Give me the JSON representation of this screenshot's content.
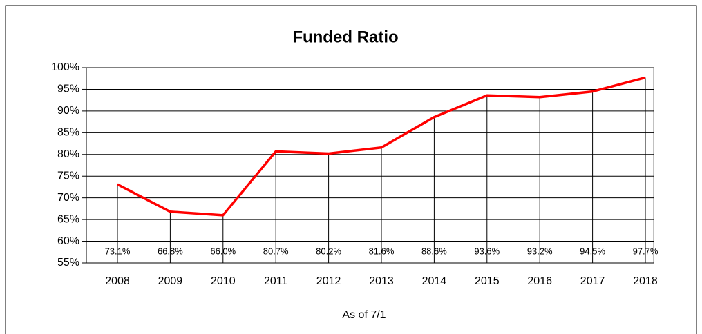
{
  "chart_data": {
    "type": "line",
    "title": "Funded Ratio",
    "x_label": "As of 7/1",
    "categories": [
      "2008",
      "2009",
      "2010",
      "2011",
      "2012",
      "2013",
      "2014",
      "2015",
      "2016",
      "2017",
      "2018"
    ],
    "values": [
      73.1,
      66.8,
      66.0,
      80.7,
      80.2,
      81.6,
      88.6,
      93.6,
      93.2,
      94.5,
      97.7
    ],
    "value_labels": [
      "73.1%",
      "66.8%",
      "66.0%",
      "80.7%",
      "80.2%",
      "81.6%",
      "88.6%",
      "93.6%",
      "93.2%",
      "94.5%",
      "97.7%"
    ],
    "color": "#ff0000",
    "ylim": [
      55,
      100
    ],
    "yticks": [
      {
        "value": 55,
        "label": "55%"
      },
      {
        "value": 60,
        "label": "60%"
      },
      {
        "value": 65,
        "label": "65%"
      },
      {
        "value": 70,
        "label": "70%"
      },
      {
        "value": 75,
        "label": "75%"
      },
      {
        "value": 80,
        "label": "80%"
      },
      {
        "value": 85,
        "label": "85%"
      },
      {
        "value": 90,
        "label": "90%"
      },
      {
        "value": 95,
        "label": "95%"
      },
      {
        "value": 100,
        "label": "100%"
      }
    ],
    "grid": true,
    "drop_lines": true
  }
}
